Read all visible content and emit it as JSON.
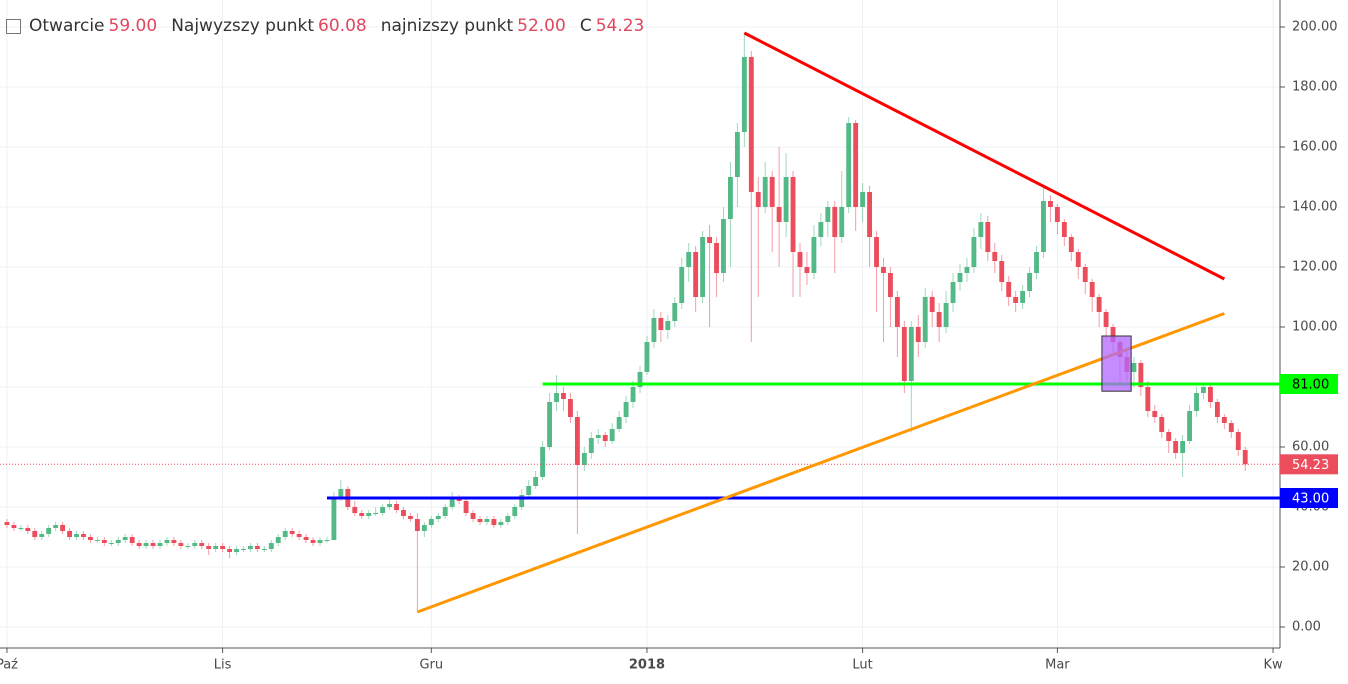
{
  "chart_data": {
    "type": "candlestick",
    "header": [
      {
        "name": "Otwarcie",
        "value": "59.00"
      },
      {
        "name": "Najwyzszy punkt",
        "value": "60.08"
      },
      {
        "name": "najnizszy punkt",
        "value": "52.00"
      },
      {
        "name": "C",
        "value": "54.23"
      }
    ],
    "up_color": "#53b987",
    "down_color": "#eb4d5c",
    "xlim": [
      -1,
      183
    ],
    "ylim": [
      -7,
      209
    ],
    "xticks": [
      {
        "value": 0,
        "label": "Paź"
      },
      {
        "value": 31,
        "label": "Lis"
      },
      {
        "value": 61,
        "label": "Gru"
      },
      {
        "value": 92,
        "label": "2018"
      },
      {
        "value": 123,
        "label": "Lut"
      },
      {
        "value": 151,
        "label": "Mar"
      },
      {
        "value": 182,
        "label": "Kw"
      }
    ],
    "yticks": [
      {
        "value": 0,
        "label": "0.00"
      },
      {
        "value": 20,
        "label": "20.00"
      },
      {
        "value": 40,
        "label": "40.00"
      },
      {
        "value": 60,
        "label": "60.00"
      },
      {
        "value": 80,
        "label": "80.00"
      },
      {
        "value": 100,
        "label": "100.00"
      },
      {
        "value": 120,
        "label": "120.00"
      },
      {
        "value": 140,
        "label": "140.00"
      },
      {
        "value": 160,
        "label": "160.00"
      },
      {
        "value": 180,
        "label": "180.00"
      },
      {
        "value": 200,
        "label": "200.00"
      }
    ],
    "grid": true,
    "levels": [
      {
        "value": 81,
        "label": "81.00",
        "color": "#00ff00"
      },
      {
        "value": 43,
        "label": "43.00",
        "color": "#0000ff"
      }
    ],
    "trend_lines": [
      {
        "color": "#ff0000",
        "x": [
          106,
          175
        ],
        "y": [
          198,
          116
        ]
      },
      {
        "color": "#ff9800",
        "x": [
          59,
          175
        ],
        "y": [
          5,
          104.5
        ]
      }
    ],
    "box": {
      "color": "#b266ff",
      "x": [
        157.4,
        161.6
      ],
      "y": [
        78.6,
        97
      ]
    },
    "x": [
      0,
      1,
      2,
      3,
      4,
      5,
      6,
      7,
      8,
      9,
      10,
      11,
      12,
      13,
      14,
      15,
      16,
      17,
      18,
      19,
      20,
      21,
      22,
      23,
      24,
      25,
      26,
      27,
      28,
      29,
      30,
      31,
      32,
      33,
      34,
      35,
      36,
      37,
      38,
      39,
      40,
      41,
      42,
      43,
      44,
      45,
      46,
      47,
      48,
      49,
      50,
      51,
      52,
      53,
      54,
      55,
      56,
      57,
      58,
      59,
      60,
      61,
      62,
      63,
      64,
      65,
      66,
      67,
      68,
      69,
      70,
      71,
      72,
      73,
      74,
      75,
      76,
      77,
      78,
      79,
      80,
      81,
      82,
      83,
      84,
      85,
      86,
      87,
      88,
      89,
      90,
      91,
      92,
      93,
      94,
      95,
      96,
      97,
      98,
      99,
      100,
      101,
      102,
      103,
      104,
      105,
      106,
      107,
      108,
      109,
      110,
      111,
      112,
      113,
      114,
      115,
      116,
      117,
      118,
      119,
      120,
      121,
      122,
      123,
      124,
      125,
      126,
      127,
      128,
      129,
      130,
      131,
      132,
      133,
      134,
      135,
      136,
      137,
      138,
      139,
      140,
      141,
      142,
      143,
      144,
      145,
      146,
      147,
      148,
      149,
      150,
      151,
      152,
      153,
      154,
      155,
      156,
      157,
      158,
      159,
      160,
      161,
      162,
      163,
      164,
      165,
      166,
      167,
      168,
      169,
      170,
      171,
      172,
      173,
      174,
      175,
      176,
      177,
      178
    ],
    "ohlc": [
      [
        35,
        36,
        33,
        34
      ],
      [
        34,
        35,
        32,
        33
      ],
      [
        33,
        34,
        32,
        33
      ],
      [
        33,
        34,
        31,
        32
      ],
      [
        32,
        33,
        29,
        30
      ],
      [
        30,
        32,
        29,
        31
      ],
      [
        31,
        34,
        30,
        33
      ],
      [
        33,
        35,
        32,
        34
      ],
      [
        34,
        35,
        31,
        32
      ],
      [
        32,
        33,
        29,
        30
      ],
      [
        30,
        32,
        29,
        31
      ],
      [
        31,
        32,
        29,
        30
      ],
      [
        30,
        31,
        28,
        29
      ],
      [
        29,
        30,
        28,
        29
      ],
      [
        29,
        30,
        27,
        28
      ],
      [
        28,
        29,
        27,
        28
      ],
      [
        28,
        30,
        27,
        29
      ],
      [
        29,
        31,
        28,
        30
      ],
      [
        30,
        31,
        27,
        28
      ],
      [
        28,
        29,
        26,
        27
      ],
      [
        27,
        29,
        26,
        28
      ],
      [
        28,
        29,
        26,
        27
      ],
      [
        27,
        29,
        26,
        28
      ],
      [
        28,
        30,
        27,
        29
      ],
      [
        29,
        30,
        27,
        28
      ],
      [
        28,
        29,
        26,
        27
      ],
      [
        27,
        28,
        26,
        27
      ],
      [
        27,
        29,
        26,
        28
      ],
      [
        28,
        29,
        26,
        27
      ],
      [
        27,
        28,
        24,
        26
      ],
      [
        26,
        28,
        25,
        27
      ],
      [
        27,
        28,
        25,
        26
      ],
      [
        26,
        27,
        23,
        25
      ],
      [
        25,
        27,
        24,
        26
      ],
      [
        26,
        27,
        25,
        26
      ],
      [
        26,
        28,
        25,
        27
      ],
      [
        27,
        28,
        25,
        26
      ],
      [
        26,
        27,
        25,
        26
      ],
      [
        26,
        29,
        25,
        28
      ],
      [
        28,
        31,
        27,
        30
      ],
      [
        30,
        33,
        29,
        32
      ],
      [
        32,
        33,
        30,
        31
      ],
      [
        31,
        32,
        29,
        30
      ],
      [
        30,
        31,
        28,
        29
      ],
      [
        29,
        30,
        27,
        28
      ],
      [
        28,
        30,
        27,
        29
      ],
      [
        29,
        30,
        28,
        29
      ],
      [
        29,
        45,
        29,
        43
      ],
      [
        43,
        49,
        42,
        46
      ],
      [
        46,
        47,
        39,
        40
      ],
      [
        40,
        42,
        37,
        38
      ],
      [
        38,
        39,
        36,
        37
      ],
      [
        37,
        39,
        36,
        38
      ],
      [
        38,
        40,
        37,
        38
      ],
      [
        38,
        41,
        37,
        40
      ],
      [
        40,
        43,
        39,
        41
      ],
      [
        41,
        42,
        38,
        39
      ],
      [
        39,
        40,
        36,
        37
      ],
      [
        37,
        38,
        35,
        36
      ],
      [
        36,
        38,
        5,
        32
      ],
      [
        32,
        35,
        30,
        34
      ],
      [
        34,
        37,
        33,
        36
      ],
      [
        36,
        38,
        35,
        37
      ],
      [
        37,
        41,
        36,
        40
      ],
      [
        40,
        45,
        39,
        43
      ],
      [
        43,
        44,
        41,
        42
      ],
      [
        42,
        43,
        37,
        38
      ],
      [
        38,
        39,
        35,
        36
      ],
      [
        36,
        37,
        34,
        35
      ],
      [
        35,
        37,
        34,
        36
      ],
      [
        36,
        37,
        33,
        34
      ],
      [
        34,
        36,
        33,
        35
      ],
      [
        35,
        38,
        34,
        37
      ],
      [
        37,
        41,
        36,
        40
      ],
      [
        40,
        46,
        39,
        44
      ],
      [
        44,
        49,
        43,
        47
      ],
      [
        47,
        52,
        46,
        50
      ],
      [
        50,
        62,
        49,
        60
      ],
      [
        60,
        78,
        59,
        75
      ],
      [
        75,
        84,
        72,
        78
      ],
      [
        78,
        80,
        72,
        76
      ],
      [
        76,
        78,
        68,
        70
      ],
      [
        70,
        72,
        31,
        54
      ],
      [
        54,
        60,
        52,
        58
      ],
      [
        58,
        65,
        56,
        63
      ],
      [
        63,
        66,
        61,
        64
      ],
      [
        64,
        65,
        60,
        62
      ],
      [
        62,
        68,
        61,
        66
      ],
      [
        66,
        72,
        65,
        70
      ],
      [
        70,
        77,
        68,
        75
      ],
      [
        75,
        82,
        73,
        80
      ],
      [
        80,
        87,
        78,
        85
      ],
      [
        85,
        97,
        84,
        95
      ],
      [
        95,
        106,
        93,
        103
      ],
      [
        103,
        105,
        95,
        99
      ],
      [
        99,
        104,
        96,
        102
      ],
      [
        102,
        110,
        100,
        108
      ],
      [
        108,
        123,
        106,
        120
      ],
      [
        120,
        128,
        115,
        125
      ],
      [
        125,
        127,
        105,
        110
      ],
      [
        110,
        132,
        108,
        130
      ],
      [
        130,
        134,
        100,
        128
      ],
      [
        128,
        130,
        110,
        118
      ],
      [
        118,
        140,
        115,
        136
      ],
      [
        136,
        155,
        120,
        150
      ],
      [
        150,
        168,
        140,
        165
      ],
      [
        165,
        198,
        160,
        190
      ],
      [
        190,
        192,
        95,
        145
      ],
      [
        145,
        150,
        110,
        140
      ],
      [
        140,
        155,
        138,
        150
      ],
      [
        150,
        152,
        125,
        140
      ],
      [
        140,
        160,
        120,
        135
      ],
      [
        135,
        158,
        130,
        150
      ],
      [
        150,
        152,
        110,
        125
      ],
      [
        125,
        128,
        110,
        120
      ],
      [
        120,
        125,
        114,
        118
      ],
      [
        118,
        134,
        116,
        130
      ],
      [
        130,
        138,
        127,
        135
      ],
      [
        135,
        142,
        130,
        140
      ],
      [
        140,
        142,
        118,
        130
      ],
      [
        130,
        152,
        128,
        140
      ],
      [
        140,
        170,
        138,
        168
      ],
      [
        168,
        169,
        132,
        140
      ],
      [
        140,
        148,
        135,
        145
      ],
      [
        145,
        147,
        120,
        130
      ],
      [
        130,
        132,
        105,
        120
      ],
      [
        120,
        123,
        95,
        118
      ],
      [
        118,
        120,
        100,
        110
      ],
      [
        110,
        112,
        90,
        100
      ],
      [
        100,
        102,
        78,
        82
      ],
      [
        82,
        102,
        65,
        100
      ],
      [
        100,
        104,
        90,
        95
      ],
      [
        95,
        113,
        93,
        110
      ],
      [
        110,
        112,
        100,
        105
      ],
      [
        105,
        108,
        95,
        100
      ],
      [
        100,
        112,
        98,
        108
      ],
      [
        108,
        118,
        105,
        115
      ],
      [
        115,
        121,
        112,
        118
      ],
      [
        118,
        123,
        115,
        120
      ],
      [
        120,
        133,
        118,
        130
      ],
      [
        130,
        138,
        126,
        135
      ],
      [
        135,
        137,
        122,
        125
      ],
      [
        125,
        128,
        118,
        122
      ],
      [
        122,
        124,
        112,
        115
      ],
      [
        115,
        117,
        107,
        110
      ],
      [
        110,
        112,
        105,
        108
      ],
      [
        108,
        114,
        106,
        112
      ],
      [
        112,
        120,
        110,
        118
      ],
      [
        118,
        127,
        116,
        125
      ],
      [
        125,
        147,
        123,
        142
      ],
      [
        142,
        144,
        135,
        140
      ],
      [
        140,
        141,
        131,
        135
      ],
      [
        135,
        136,
        127,
        130
      ],
      [
        130,
        131,
        122,
        125
      ],
      [
        125,
        126,
        116,
        120
      ],
      [
        120,
        121,
        111,
        115
      ],
      [
        115,
        116,
        105,
        110
      ],
      [
        110,
        111,
        100,
        105
      ],
      [
        105,
        106,
        96,
        100
      ],
      [
        100,
        101,
        91,
        95
      ],
      [
        95,
        96,
        80,
        90
      ],
      [
        90,
        93,
        82,
        85
      ],
      [
        85,
        90,
        80,
        88
      ],
      [
        88,
        89,
        77,
        80
      ],
      [
        80,
        82,
        70,
        72
      ],
      [
        72,
        74,
        68,
        70
      ],
      [
        70,
        71,
        63,
        65
      ],
      [
        65,
        66,
        58,
        62
      ],
      [
        62,
        63,
        56,
        58
      ],
      [
        58,
        64,
        50,
        62
      ],
      [
        62,
        74,
        61,
        72
      ],
      [
        72,
        80,
        70,
        78
      ],
      [
        78,
        81,
        76,
        80
      ],
      [
        80,
        81,
        73,
        75
      ],
      [
        75,
        76,
        68,
        70
      ],
      [
        70,
        71,
        66,
        68
      ],
      [
        68,
        69,
        63,
        65
      ],
      [
        65,
        66,
        57,
        59
      ],
      [
        59,
        60.08,
        52,
        54.23
      ]
    ]
  }
}
